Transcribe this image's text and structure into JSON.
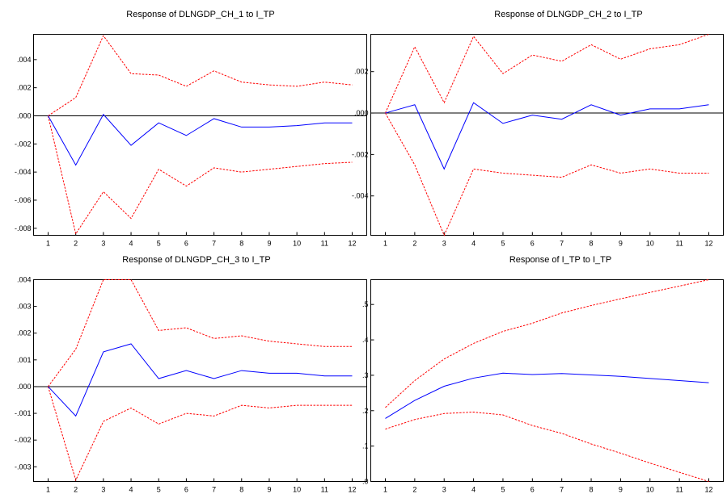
{
  "chart_data": [
    {
      "type": "line",
      "title": "Response of DLNGDP_CH_1 to I_TP",
      "x": [
        1,
        2,
        3,
        4,
        5,
        6,
        7,
        8,
        9,
        10,
        11,
        12
      ],
      "ylim": [
        -0.0085,
        0.0058
      ],
      "yticks": [
        ".004",
        ".002",
        ".000",
        "-.002",
        "-.004",
        "-.006",
        "-.008"
      ],
      "ytick_values": [
        0.004,
        0.002,
        0.0,
        -0.002,
        -0.004,
        -0.006,
        -0.008
      ],
      "zero_line": true,
      "series": [
        {
          "role": "response",
          "color": "#0000ff",
          "style": "solid",
          "values": [
            0.0,
            -0.0035,
            0.0001,
            -0.0021,
            -0.0005,
            -0.0014,
            -0.0002,
            -0.0008,
            -0.0008,
            -0.0007,
            -0.0005,
            -0.0005
          ]
        },
        {
          "role": "upper",
          "color": "#ff0000",
          "style": "dashed",
          "values": [
            0.0,
            0.0013,
            0.0057,
            0.003,
            0.0029,
            0.0021,
            0.0032,
            0.0024,
            0.0022,
            0.0021,
            0.0024,
            0.0022
          ]
        },
        {
          "role": "lower",
          "color": "#ff0000",
          "style": "dashed",
          "values": [
            0.0,
            -0.0084,
            -0.0054,
            -0.0073,
            -0.0038,
            -0.005,
            -0.0037,
            -0.004,
            -0.0038,
            -0.0036,
            -0.0034,
            -0.0033
          ]
        }
      ]
    },
    {
      "type": "line",
      "title": "Response of DLNGDP_CH_2 to I_TP",
      "x": [
        1,
        2,
        3,
        4,
        5,
        6,
        7,
        8,
        9,
        10,
        11,
        12
      ],
      "ylim": [
        -0.0059,
        0.0038
      ],
      "yticks": [
        ".002",
        ".000",
        "-.002",
        "-.004"
      ],
      "ytick_values": [
        0.002,
        0.0,
        -0.002,
        -0.004
      ],
      "zero_line": true,
      "series": [
        {
          "role": "response",
          "color": "#0000ff",
          "style": "solid",
          "values": [
            0.0,
            0.0004,
            -0.0027,
            0.0005,
            -0.0005,
            -0.0001,
            -0.0003,
            0.0004,
            -0.0001,
            0.0002,
            0.0002,
            0.0004
          ]
        },
        {
          "role": "upper",
          "color": "#ff0000",
          "style": "dashed",
          "values": [
            0.0,
            0.0032,
            0.0005,
            0.0037,
            0.0019,
            0.0028,
            0.0025,
            0.0033,
            0.0026,
            0.0031,
            0.0033,
            0.0038
          ]
        },
        {
          "role": "lower",
          "color": "#ff0000",
          "style": "dashed",
          "values": [
            0.0,
            -0.0025,
            -0.0059,
            -0.0027,
            -0.0029,
            -0.003,
            -0.0031,
            -0.0025,
            -0.0029,
            -0.0027,
            -0.0029,
            -0.0029
          ]
        }
      ]
    },
    {
      "type": "line",
      "title": "Response of DLNGDP_CH_3 to I_TP",
      "x": [
        1,
        2,
        3,
        4,
        5,
        6,
        7,
        8,
        9,
        10,
        11,
        12
      ],
      "ylim": [
        -0.00355,
        0.004
      ],
      "yticks": [
        ".004",
        ".003",
        ".002",
        ".001",
        ".000",
        "-.001",
        "-.002",
        "-.003"
      ],
      "ytick_values": [
        0.004,
        0.003,
        0.002,
        0.001,
        0.0,
        -0.001,
        -0.002,
        -0.003
      ],
      "zero_line": true,
      "series": [
        {
          "role": "response",
          "color": "#0000ff",
          "style": "solid",
          "values": [
            0.0,
            -0.0011,
            0.0013,
            0.0016,
            0.0003,
            0.0006,
            0.0003,
            0.0006,
            0.0005,
            0.0005,
            0.0004,
            0.0004
          ]
        },
        {
          "role": "upper",
          "color": "#ff0000",
          "style": "dashed",
          "values": [
            0.0,
            0.0014,
            0.004,
            0.004,
            0.0021,
            0.0022,
            0.0018,
            0.0019,
            0.0017,
            0.0016,
            0.0015,
            0.0015
          ]
        },
        {
          "role": "lower",
          "color": "#ff0000",
          "style": "dashed",
          "values": [
            0.0,
            -0.0035,
            -0.0013,
            -0.0008,
            -0.0014,
            -0.001,
            -0.0011,
            -0.0007,
            -0.0008,
            -0.0007,
            -0.0007,
            -0.0007
          ]
        }
      ]
    },
    {
      "type": "line",
      "title": "Response of I_TP to I_TP",
      "x": [
        1,
        2,
        3,
        4,
        5,
        6,
        7,
        8,
        9,
        10,
        11,
        12
      ],
      "ylim": [
        0.0,
        0.57
      ],
      "yticks": [
        ".5",
        ".4",
        ".3",
        ".2",
        ".1",
        ".0"
      ],
      "ytick_values": [
        0.5,
        0.4,
        0.3,
        0.2,
        0.1,
        0.0
      ],
      "zero_line": false,
      "series": [
        {
          "role": "response",
          "color": "#0000ff",
          "style": "solid",
          "values": [
            0.178,
            0.229,
            0.269,
            0.292,
            0.306,
            0.302,
            0.305,
            0.301,
            0.297,
            0.291,
            0.285,
            0.279
          ]
        },
        {
          "role": "upper",
          "color": "#ff0000",
          "style": "dashed",
          "values": [
            0.209,
            0.285,
            0.346,
            0.39,
            0.424,
            0.447,
            0.476,
            0.497,
            0.516,
            0.534,
            0.552,
            0.57
          ]
        },
        {
          "role": "lower",
          "color": "#ff0000",
          "style": "dashed",
          "values": [
            0.148,
            0.175,
            0.192,
            0.196,
            0.188,
            0.158,
            0.136,
            0.106,
            0.08,
            0.052,
            0.026,
            0.0
          ]
        }
      ]
    }
  ]
}
